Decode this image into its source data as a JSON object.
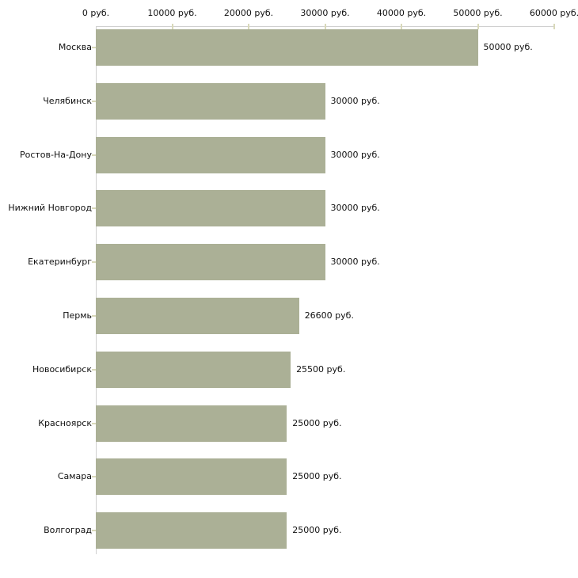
{
  "chart_data": {
    "type": "bar",
    "orientation": "horizontal",
    "title": "",
    "xlabel": "",
    "ylabel": "",
    "unit": "руб.",
    "xlim": [
      0,
      60000
    ],
    "grid": false,
    "legend": null,
    "categories": [
      "Москва",
      "Челябинск",
      "Ростов-На-Дону",
      "Нижний Новгород",
      "Екатеринбург",
      "Пермь",
      "Новосибирск",
      "Красноярск",
      "Самара",
      "Волгоград"
    ],
    "values": [
      50000,
      30000,
      30000,
      30000,
      30000,
      26600,
      25500,
      25000,
      25000,
      25000
    ],
    "value_labels": [
      "50000 руб.",
      "30000 руб.",
      "30000 руб.",
      "30000 руб.",
      "30000 руб.",
      "26600 руб.",
      "25500 руб.",
      "25000 руб.",
      "25000 руб.",
      "25000 руб."
    ],
    "x_ticks": [
      0,
      10000,
      20000,
      30000,
      40000,
      50000,
      60000
    ],
    "x_tick_labels": [
      "0 руб.",
      "10000 руб.",
      "20000 руб.",
      "30000 руб.",
      "40000 руб.",
      "50000 руб.",
      "60000 руб."
    ],
    "colors": {
      "bar": "#abb096",
      "axis_line": "#d0d0d0",
      "tick_mark": "#d9d9ba",
      "text": "#111111",
      "background": "#ffffff"
    }
  }
}
